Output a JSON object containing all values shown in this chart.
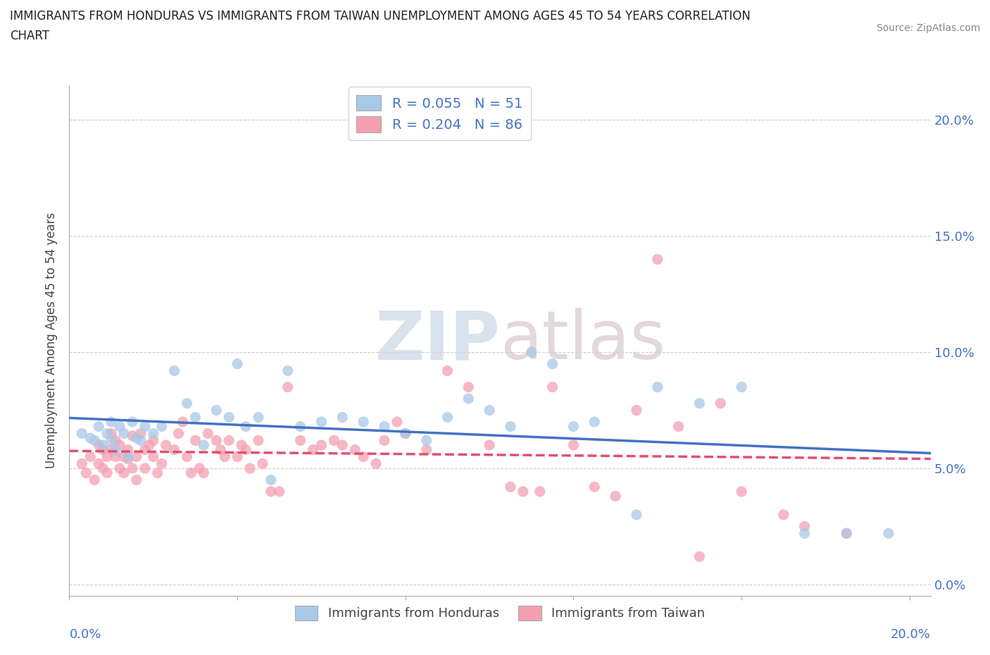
{
  "title_line1": "IMMIGRANTS FROM HONDURAS VS IMMIGRANTS FROM TAIWAN UNEMPLOYMENT AMONG AGES 45 TO 54 YEARS CORRELATION",
  "title_line2": "CHART",
  "source": "Source: ZipAtlas.com",
  "ylabel": "Unemployment Among Ages 45 to 54 years",
  "xlim": [
    0.0,
    0.205
  ],
  "ylim": [
    -0.005,
    0.215
  ],
  "yticks": [
    0.0,
    0.05,
    0.1,
    0.15,
    0.2
  ],
  "xticks": [
    0.0,
    0.04,
    0.08,
    0.12,
    0.16,
    0.2
  ],
  "legend1_label": "R = 0.055   N = 51",
  "legend2_label": "R = 0.204   N = 86",
  "color_honduras": "#a8c8e8",
  "color_taiwan": "#f4a0b0",
  "trendline_honduras_color": "#4472c4",
  "trendline_taiwan_color": "#e05070",
  "watermark_color": "#c8d8e8",
  "watermark_color2": "#d8c8d0",
  "honduras_x": [
    0.003,
    0.005,
    0.006,
    0.007,
    0.008,
    0.009,
    0.01,
    0.01,
    0.011,
    0.012,
    0.013,
    0.014,
    0.015,
    0.016,
    0.017,
    0.018,
    0.02,
    0.022,
    0.025,
    0.028,
    0.03,
    0.032,
    0.035,
    0.038,
    0.04,
    0.042,
    0.045,
    0.048,
    0.052,
    0.055,
    0.06,
    0.065,
    0.07,
    0.075,
    0.08,
    0.085,
    0.09,
    0.095,
    0.1,
    0.105,
    0.11,
    0.115,
    0.12,
    0.125,
    0.135,
    0.14,
    0.15,
    0.16,
    0.175,
    0.185,
    0.195
  ],
  "honduras_y": [
    0.065,
    0.063,
    0.062,
    0.068,
    0.06,
    0.065,
    0.062,
    0.07,
    0.058,
    0.068,
    0.065,
    0.055,
    0.07,
    0.063,
    0.062,
    0.068,
    0.065,
    0.068,
    0.092,
    0.078,
    0.072,
    0.06,
    0.075,
    0.072,
    0.095,
    0.068,
    0.072,
    0.045,
    0.092,
    0.068,
    0.07,
    0.072,
    0.07,
    0.068,
    0.065,
    0.062,
    0.072,
    0.08,
    0.075,
    0.068,
    0.1,
    0.095,
    0.068,
    0.07,
    0.03,
    0.085,
    0.078,
    0.085,
    0.022,
    0.022,
    0.022
  ],
  "taiwan_x": [
    0.003,
    0.004,
    0.005,
    0.006,
    0.007,
    0.007,
    0.008,
    0.008,
    0.009,
    0.009,
    0.01,
    0.01,
    0.011,
    0.011,
    0.012,
    0.012,
    0.013,
    0.013,
    0.014,
    0.014,
    0.015,
    0.015,
    0.016,
    0.016,
    0.017,
    0.018,
    0.018,
    0.019,
    0.02,
    0.02,
    0.021,
    0.022,
    0.023,
    0.025,
    0.026,
    0.027,
    0.028,
    0.029,
    0.03,
    0.031,
    0.032,
    0.033,
    0.035,
    0.036,
    0.037,
    0.038,
    0.04,
    0.041,
    0.042,
    0.043,
    0.045,
    0.046,
    0.048,
    0.05,
    0.052,
    0.055,
    0.058,
    0.06,
    0.063,
    0.065,
    0.068,
    0.07,
    0.073,
    0.075,
    0.078,
    0.08,
    0.085,
    0.09,
    0.095,
    0.1,
    0.105,
    0.108,
    0.112,
    0.115,
    0.12,
    0.125,
    0.13,
    0.135,
    0.14,
    0.145,
    0.15,
    0.155,
    0.16,
    0.17,
    0.175,
    0.185
  ],
  "taiwan_y": [
    0.052,
    0.048,
    0.055,
    0.045,
    0.06,
    0.052,
    0.058,
    0.05,
    0.055,
    0.048,
    0.058,
    0.065,
    0.062,
    0.055,
    0.05,
    0.06,
    0.055,
    0.048,
    0.054,
    0.058,
    0.064,
    0.05,
    0.045,
    0.055,
    0.065,
    0.05,
    0.058,
    0.06,
    0.055,
    0.062,
    0.048,
    0.052,
    0.06,
    0.058,
    0.065,
    0.07,
    0.055,
    0.048,
    0.062,
    0.05,
    0.048,
    0.065,
    0.062,
    0.058,
    0.055,
    0.062,
    0.055,
    0.06,
    0.058,
    0.05,
    0.062,
    0.052,
    0.04,
    0.04,
    0.085,
    0.062,
    0.058,
    0.06,
    0.062,
    0.06,
    0.058,
    0.055,
    0.052,
    0.062,
    0.07,
    0.065,
    0.058,
    0.092,
    0.085,
    0.06,
    0.042,
    0.04,
    0.04,
    0.085,
    0.06,
    0.042,
    0.038,
    0.075,
    0.14,
    0.068,
    0.012,
    0.078,
    0.04,
    0.03,
    0.025,
    0.022
  ]
}
